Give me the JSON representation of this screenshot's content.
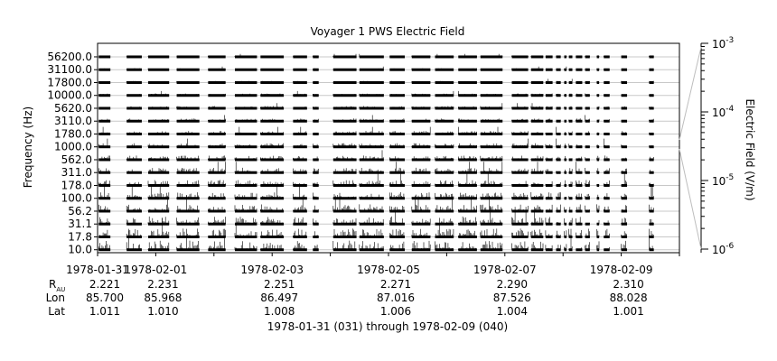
{
  "chart_data": {
    "type": "line",
    "title": "Voyager 1 PWS Electric Field",
    "ylabel": "Frequency (Hz)",
    "colorbar_label": "Electric Field (V/m)",
    "xlabel_summary": "1978-01-31 (031) through 1978-02-09 (040)",
    "y_scale": "log",
    "grid": true,
    "frequency_channels": [
      "56200.0",
      "31100.0",
      "17800.0",
      "10000.0",
      "5620.0",
      "3110.0",
      "1780.0",
      "1000.0",
      "562.0",
      "311.0",
      "178.0",
      "100.0",
      "56.2",
      "31.1",
      "17.8",
      "10.0"
    ],
    "x_tick_labels": [
      "1978-01-31",
      "1978-02-01",
      "1978-02-03",
      "1978-02-05",
      "1978-02-07",
      "1978-02-09"
    ],
    "x_tick_days": [
      0,
      1,
      3,
      5,
      7,
      9
    ],
    "x_range_days": [
      0,
      10
    ],
    "colorbar": {
      "scale": "log",
      "range": [
        1e-06,
        0.001
      ],
      "tick_labels": [
        {
          "base": "10",
          "exp": "-3"
        },
        {
          "base": "10",
          "exp": "-4"
        },
        {
          "base": "10",
          "exp": "-5"
        },
        {
          "base": "10",
          "exp": "-6"
        }
      ]
    },
    "ephemeris": {
      "row_labels": {
        "r_base": "R",
        "r_sub": "AU",
        "lon": "Lon",
        "lat": "Lat"
      },
      "columns": [
        {
          "day": 0,
          "r": "2.221",
          "lon": "85.700",
          "lat": "1.011"
        },
        {
          "day": 1,
          "r": "2.231",
          "lon": "85.968",
          "lat": "1.010"
        },
        {
          "day": 3,
          "r": "2.251",
          "lon": "86.497",
          "lat": "1.008"
        },
        {
          "day": 5,
          "r": "2.271",
          "lon": "87.016",
          "lat": "1.006"
        },
        {
          "day": 7,
          "r": "2.290",
          "lon": "87.526",
          "lat": "1.004"
        },
        {
          "day": 9,
          "r": "2.310",
          "lon": "88.028",
          "lat": "1.001"
        }
      ]
    },
    "data_segments_days": [
      [
        0.02,
        0.22
      ],
      [
        0.5,
        0.76
      ],
      [
        0.87,
        1.23
      ],
      [
        1.36,
        1.75
      ],
      [
        1.9,
        2.2
      ],
      [
        2.36,
        2.74
      ],
      [
        2.8,
        3.2
      ],
      [
        3.36,
        3.6
      ],
      [
        3.7,
        3.8
      ],
      [
        4.05,
        4.45
      ],
      [
        4.5,
        4.92
      ],
      [
        5.02,
        5.28
      ],
      [
        5.4,
        5.72
      ],
      [
        5.8,
        6.12
      ],
      [
        6.2,
        6.52
      ],
      [
        6.58,
        6.96
      ],
      [
        7.12,
        7.4
      ],
      [
        7.45,
        7.66
      ],
      [
        7.7,
        7.82
      ],
      [
        7.88,
        7.96
      ],
      [
        8.02,
        8.06
      ],
      [
        8.1,
        8.16
      ],
      [
        8.22,
        8.33
      ],
      [
        8.38,
        8.46
      ],
      [
        8.58,
        8.62
      ],
      [
        8.7,
        8.8
      ],
      [
        9.0,
        9.1
      ],
      [
        9.48,
        9.56
      ]
    ]
  }
}
